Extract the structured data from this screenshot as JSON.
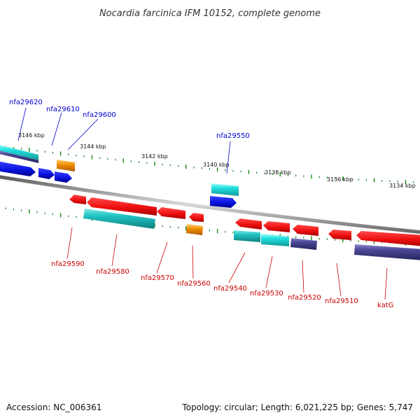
{
  "title": "Nocardia farcinica IFM 10152, complete genome",
  "footer": {
    "accession": "Accession: NC_006361",
    "topology": "Topology: circular; Length: 6,021,225 bp; Genes: 5,747"
  },
  "colors": {
    "backbone": "#808080",
    "tick": "#1a8a1a",
    "label_top": "#0000cc",
    "label_bottom": "#cc0000"
  },
  "kbp_markers": [
    "3146 kbp",
    "3144 kbp",
    "3142 kbp",
    "3140 kbp",
    "3138 kbp",
    "3136 kbp",
    "3134 kbp"
  ],
  "top_labels": [
    "nfa29620",
    "nfa29610",
    "nfa29600",
    "nfa29550"
  ],
  "bottom_labels": [
    "nfa29590",
    "nfa29580",
    "nfa29570",
    "nfa29560",
    "nfa29540",
    "nfa29530",
    "nfa29520",
    "nfa29510",
    "katG"
  ],
  "feature_colors": {
    "cds": "#ee1111",
    "blue": "#0a14e0",
    "cyan": "#22cccc",
    "navy": "#3c3a86",
    "orange": "#f08c00"
  }
}
